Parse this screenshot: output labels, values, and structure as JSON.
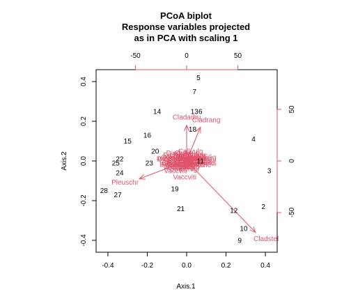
{
  "chart_data": {
    "type": "scatter",
    "title_lines": [
      "PCoA biplot",
      "Response variables projected",
      "as in PCA with scaling 1"
    ],
    "xlabel": "Axis.1",
    "ylabel": "Axis.2",
    "xlim": [
      -0.46,
      0.46
    ],
    "ylim": [
      -0.46,
      0.46
    ],
    "x_ticks": [
      "-0.4",
      "-0.2",
      "0.0",
      "0.2",
      "0.4"
    ],
    "x_tick_values": [
      -0.4,
      -0.2,
      0.0,
      0.2,
      0.4
    ],
    "y_ticks": [
      "-0.4",
      "-0.2",
      "0.0",
      "0.2",
      "0.4"
    ],
    "y_tick_values": [
      -0.4,
      -0.2,
      0.0,
      0.2,
      0.4
    ],
    "top_axis": {
      "scale": 0.0052,
      "ticks": [
        "-50",
        "0",
        "50"
      ],
      "tick_values": [
        -50,
        0,
        50
      ]
    },
    "right_axis": {
      "scale": 0.0052,
      "ticks": [
        "-50",
        "0",
        "50"
      ],
      "tick_values": [
        -50,
        0,
        50
      ]
    },
    "site_color": "#000000",
    "species_color": "#DF536B",
    "sites": [
      {
        "label": "5",
        "x": 0.06,
        "y": 0.42
      },
      {
        "label": "7",
        "x": 0.04,
        "y": 0.35
      },
      {
        "label": "13",
        "x": 0.04,
        "y": 0.25
      },
      {
        "label": "6",
        "x": 0.07,
        "y": 0.25
      },
      {
        "label": "14",
        "x": -0.15,
        "y": 0.25
      },
      {
        "label": "18",
        "x": 0.03,
        "y": 0.16
      },
      {
        "label": "4",
        "x": 0.34,
        "y": 0.11
      },
      {
        "label": "15",
        "x": -0.3,
        "y": 0.1
      },
      {
        "label": "16",
        "x": -0.2,
        "y": 0.13
      },
      {
        "label": "20",
        "x": -0.16,
        "y": 0.05
      },
      {
        "label": "22",
        "x": -0.34,
        "y": 0.01
      },
      {
        "label": "25",
        "x": -0.36,
        "y": -0.01
      },
      {
        "label": "23",
        "x": -0.19,
        "y": -0.01
      },
      {
        "label": "24",
        "x": -0.34,
        "y": -0.06
      },
      {
        "label": "11",
        "x": 0.07,
        "y": 0.0
      },
      {
        "label": "3",
        "x": 0.42,
        "y": -0.05
      },
      {
        "label": "19",
        "x": -0.06,
        "y": -0.14
      },
      {
        "label": "28",
        "x": -0.42,
        "y": -0.15
      },
      {
        "label": "27",
        "x": -0.35,
        "y": -0.17
      },
      {
        "label": "21",
        "x": -0.03,
        "y": -0.24
      },
      {
        "label": "2",
        "x": 0.39,
        "y": -0.23
      },
      {
        "label": "12",
        "x": 0.24,
        "y": -0.25
      },
      {
        "label": "10",
        "x": 0.29,
        "y": -0.34
      },
      {
        "label": "9",
        "x": 0.27,
        "y": -0.4
      }
    ],
    "species": [
      {
        "label": "Cladarbu",
        "x": 0.0,
        "y": 0.18
      },
      {
        "label": "Cladrang",
        "x": 0.07,
        "y": 0.17
      },
      {
        "label": "Pleuschr",
        "x": -0.24,
        "y": -0.09
      },
      {
        "label": "Cladstel",
        "x": 0.35,
        "y": -0.36
      },
      {
        "label": "Dicrfusc",
        "x": -0.04,
        "y": 0.03
      },
      {
        "label": "Callvulg",
        "x": 0.0,
        "y": 0.04
      },
      {
        "label": "Hylosple",
        "x": -0.05,
        "y": -0.02
      },
      {
        "label": "Empenigr",
        "x": -0.02,
        "y": -0.03
      },
      {
        "label": "Vaccviti",
        "x": -0.04,
        "y": -0.05
      },
      {
        "label": "Vaccmyrt",
        "x": -0.03,
        "y": -0.01
      },
      {
        "label": "Cladcorn",
        "x": 0.01,
        "y": 0.01
      },
      {
        "label": "Cladgrac",
        "x": 0.02,
        "y": 0.0
      },
      {
        "label": "Cladunci",
        "x": 0.03,
        "y": 0.02
      },
      {
        "label": "Cladcris",
        "x": -0.02,
        "y": 0.01
      },
      {
        "label": "Cladfimb",
        "x": 0.04,
        "y": 0.0
      },
      {
        "label": "Cladchlo",
        "x": -0.01,
        "y": -0.01
      },
      {
        "label": "Cladbotr",
        "x": 0.02,
        "y": -0.02
      },
      {
        "label": "Cladamau",
        "x": 0.05,
        "y": 0.01
      },
      {
        "label": "Cladsp",
        "x": -0.06,
        "y": 0.0
      },
      {
        "label": "Cetreric",
        "x": 0.03,
        "y": 0.03
      },
      {
        "label": "Cetrisla",
        "x": -0.05,
        "y": 0.02
      },
      {
        "label": "Flavniva",
        "x": 0.06,
        "y": -0.01
      },
      {
        "label": "Nepharct",
        "x": -0.03,
        "y": 0.02
      },
      {
        "label": "Stersp",
        "x": 0.01,
        "y": -0.03
      },
      {
        "label": "Peltapht",
        "x": -0.02,
        "y": -0.02
      },
      {
        "label": "Icmaeric",
        "x": 0.04,
        "y": -0.02
      },
      {
        "label": "Cladcerv",
        "x": 0.0,
        "y": 0.02
      },
      {
        "label": "Claddefo",
        "x": -0.04,
        "y": -0.01
      },
      {
        "label": "Cladphyl",
        "x": 0.02,
        "y": 0.02
      },
      {
        "label": "Pohlnuta",
        "x": -0.01,
        "y": 0.01
      },
      {
        "label": "Ptilcili",
        "x": -0.06,
        "y": -0.02
      },
      {
        "label": "Barbhatc",
        "x": 0.05,
        "y": -0.01
      },
      {
        "label": "Polypili",
        "x": -0.01,
        "y": -0.02
      },
      {
        "label": "Polyjuni",
        "x": 0.03,
        "y": -0.01
      },
      {
        "label": "Polycomm",
        "x": -0.05,
        "y": 0.01
      },
      {
        "label": "Rhodtome",
        "x": 0.01,
        "y": 0.03
      },
      {
        "label": "Ledupalu",
        "x": -0.03,
        "y": -0.03
      },
      {
        "label": "Betupube",
        "x": 0.02,
        "y": 0.01
      },
      {
        "label": "Vacculig",
        "x": 0.06,
        "y": 0.02
      },
      {
        "label": "Dicrsp",
        "x": -0.07,
        "y": 0.01
      },
      {
        "label": "Dicrpoly",
        "x": -0.02,
        "y": 0.0
      }
    ],
    "species_label_overlap": [
      "Dicrfusc",
      "Callvulg",
      "Hylosple",
      "Empenigr",
      "Vaccviti"
    ]
  }
}
